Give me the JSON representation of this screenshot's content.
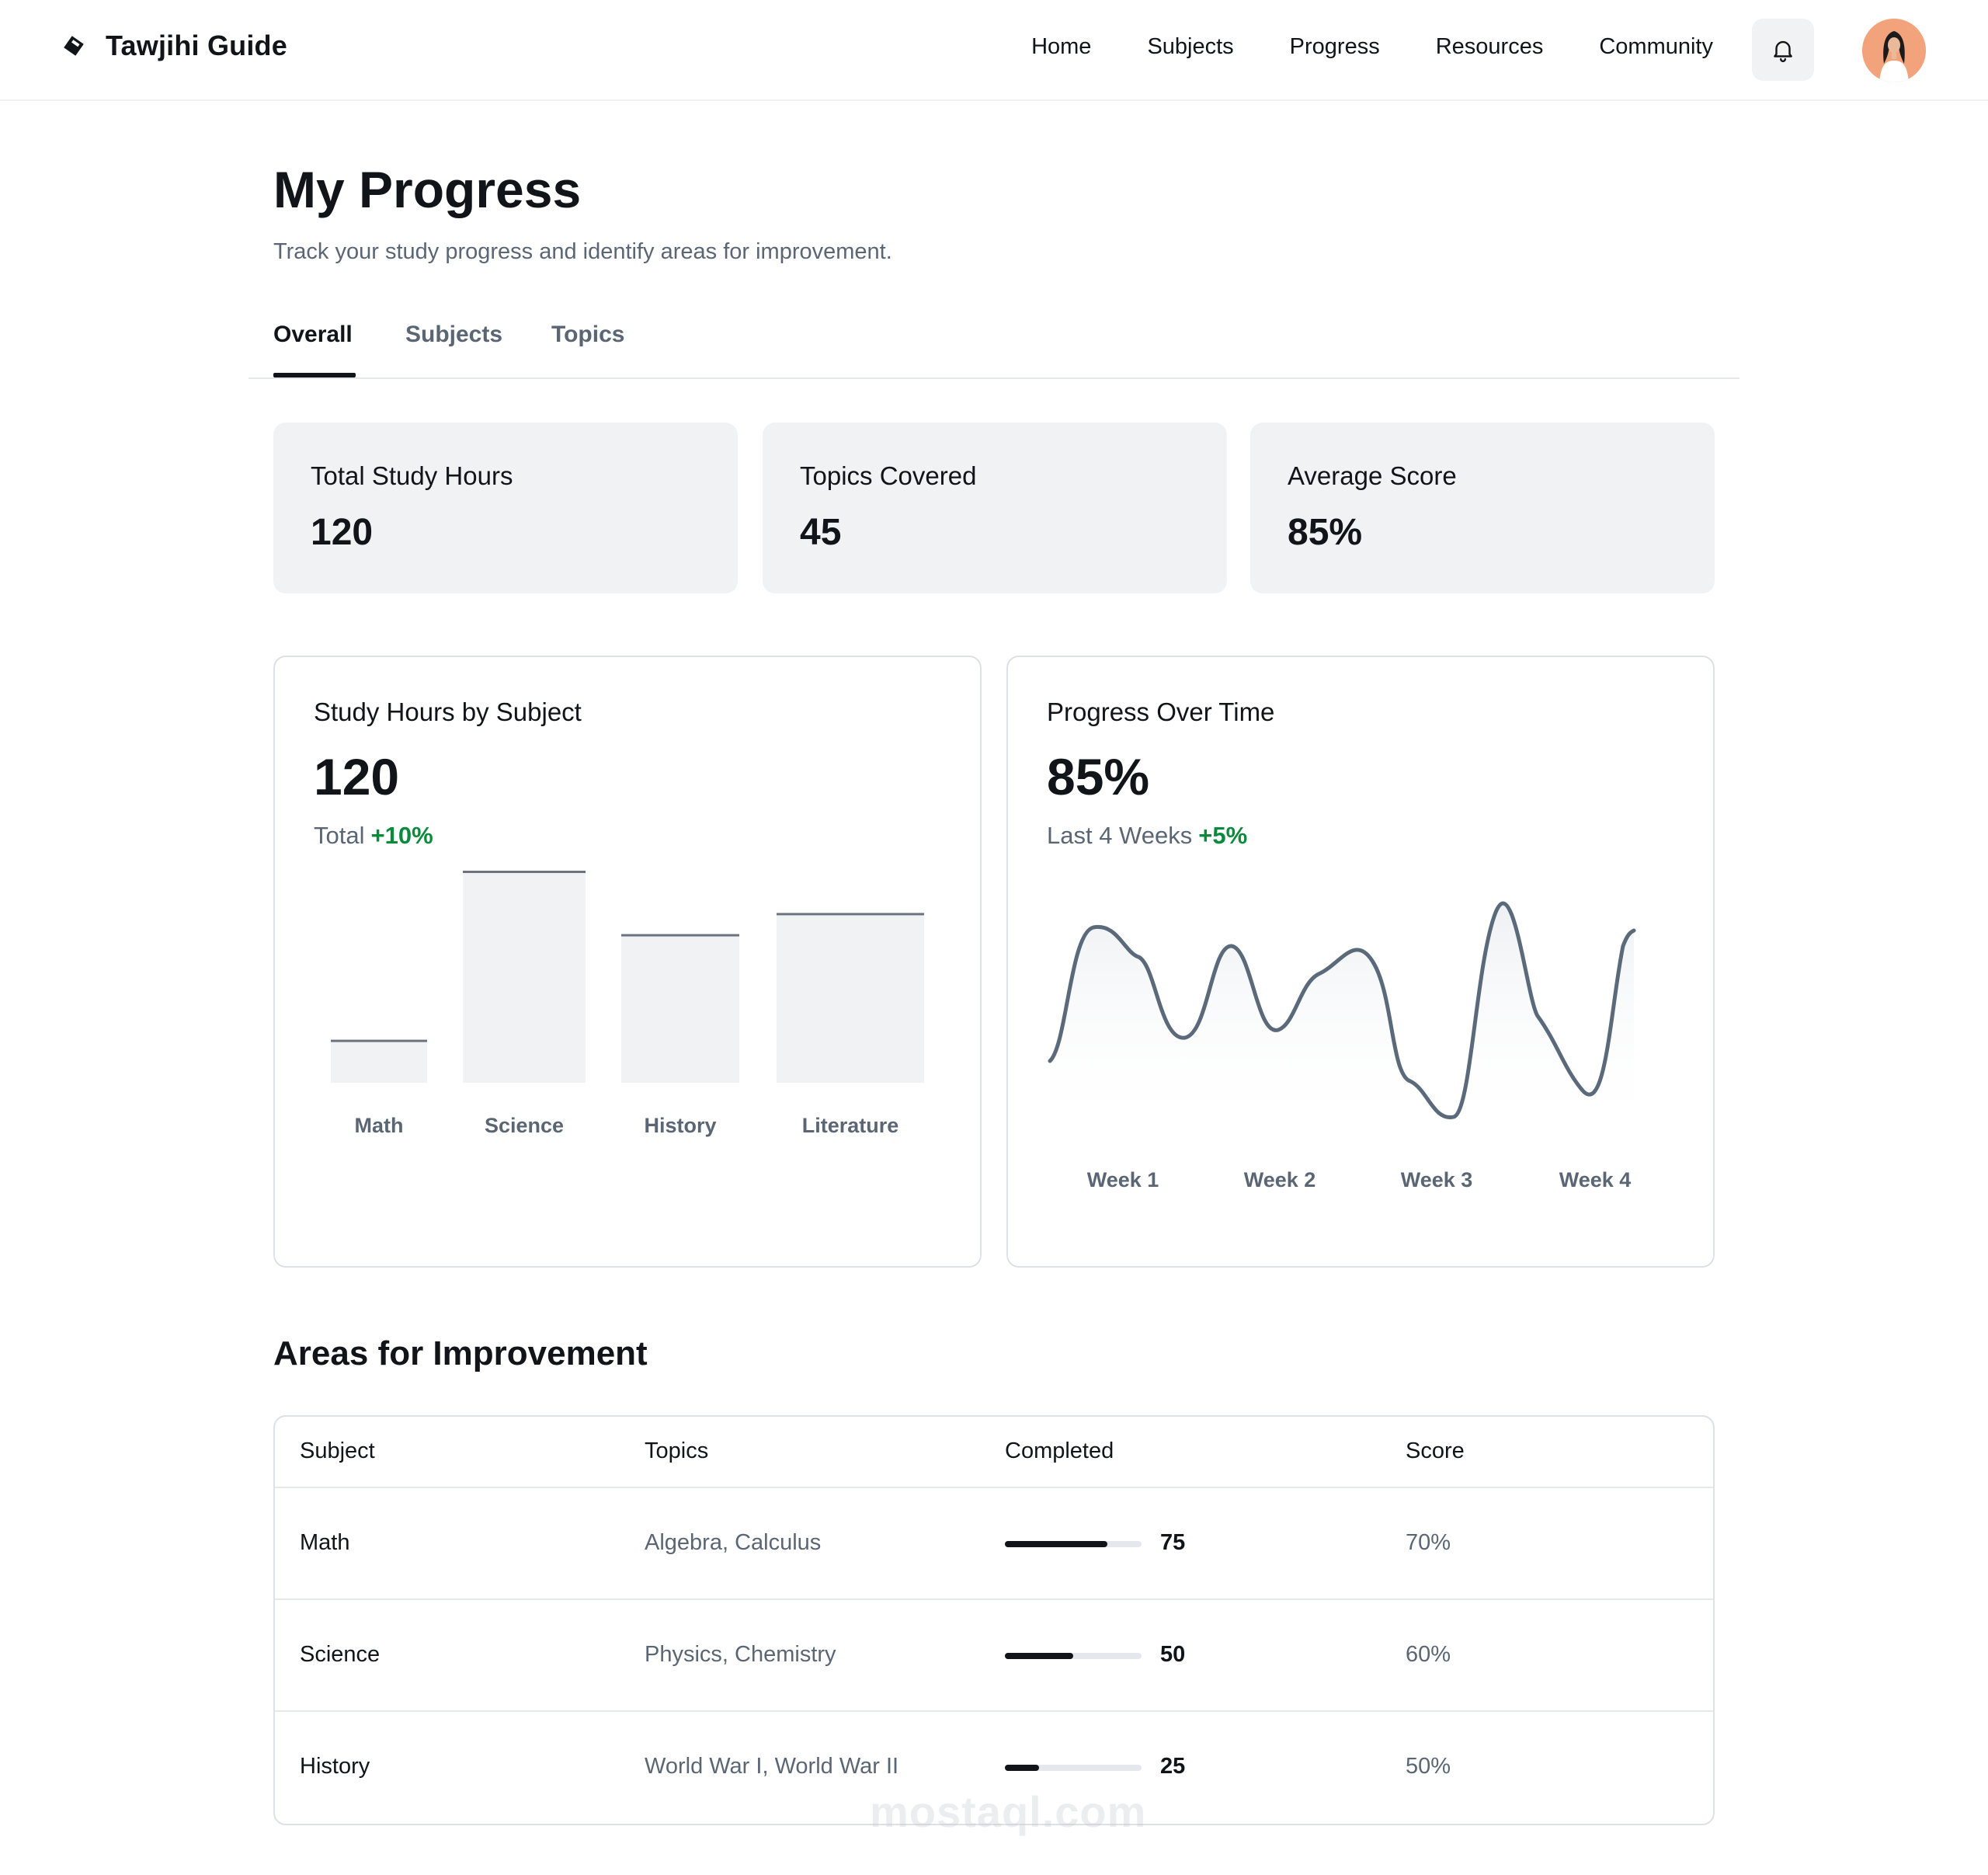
{
  "brand": {
    "name": "Tawjihi Guide"
  },
  "nav": [
    "Home",
    "Subjects",
    "Progress",
    "Resources",
    "Community"
  ],
  "page": {
    "title": "My Progress",
    "subtitle": "Track your study progress and identify areas for improvement."
  },
  "tabs": [
    "Overall",
    "Subjects",
    "Topics"
  ],
  "stats": [
    {
      "label": "Total Study Hours",
      "value": "120"
    },
    {
      "label": "Topics Covered",
      "value": "45"
    },
    {
      "label": "Average Score",
      "value": "85%"
    }
  ],
  "chart_data": [
    {
      "type": "bar",
      "title": "Study Hours by Subject",
      "big_value": "120",
      "subtitle": "Total",
      "delta": "+10%",
      "categories": [
        "Math",
        "Science",
        "History",
        "Literature"
      ],
      "values": [
        20,
        100,
        70,
        80
      ],
      "ylim": [
        0,
        100
      ],
      "colors": {
        "bar": "#f0f2f4",
        "cap": "#6b7280"
      }
    },
    {
      "type": "area",
      "title": "Progress Over Time",
      "big_value": "85%",
      "subtitle": "Last 4 Weeks",
      "delta": "+5%",
      "categories": [
        "Week 1",
        "Week 2",
        "Week 3",
        "Week 4"
      ],
      "colors": {
        "line": "#5b6a7b"
      }
    }
  ],
  "improvement": {
    "title": "Areas for Improvement",
    "columns": [
      "Subject",
      "Topics",
      "Completed",
      "Score"
    ],
    "rows": [
      {
        "subject": "Math",
        "topics": "Algebra, Calculus",
        "completed": 75,
        "score": "70%"
      },
      {
        "subject": "Science",
        "topics": "Physics, Chemistry",
        "completed": 50,
        "score": "60%"
      },
      {
        "subject": "History",
        "topics": "World War I, World War II",
        "completed": 25,
        "score": "50%"
      }
    ]
  },
  "watermark": "mostaql.com",
  "colors": {
    "accent": "#111418",
    "positive": "#0a8a3a",
    "muted": "#5b6675",
    "card": "#f0f2f4"
  }
}
